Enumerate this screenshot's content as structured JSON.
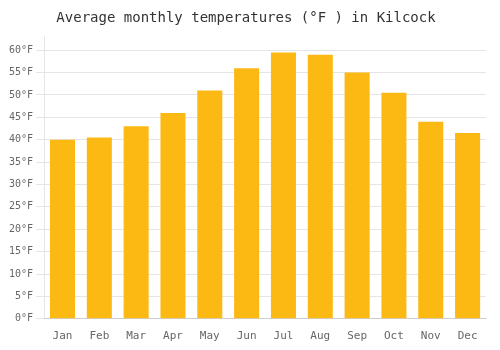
{
  "chart_data": {
    "type": "bar",
    "title": "Average monthly temperatures (°F ) in Kilcock",
    "categories": [
      "Jan",
      "Feb",
      "Mar",
      "Apr",
      "May",
      "Jun",
      "Jul",
      "Aug",
      "Sep",
      "Oct",
      "Nov",
      "Dec"
    ],
    "values": [
      40,
      40.5,
      43,
      46,
      51,
      56,
      59.5,
      59,
      55,
      50.5,
      44,
      41.5
    ],
    "color": "#FDB913",
    "ylim": [
      0,
      63
    ],
    "yticks": [
      {
        "value": 0,
        "label": "0°F"
      },
      {
        "value": 5,
        "label": "5°F"
      },
      {
        "value": 10,
        "label": "10°F"
      },
      {
        "value": 15,
        "label": "15°F"
      },
      {
        "value": 20,
        "label": "20°F"
      },
      {
        "value": 25,
        "label": "25°F"
      },
      {
        "value": 30,
        "label": "30°F"
      },
      {
        "value": 35,
        "label": "35°F"
      },
      {
        "value": 40,
        "label": "40°F"
      },
      {
        "value": 45,
        "label": "45°F"
      },
      {
        "value": 50,
        "label": "50°F"
      },
      {
        "value": 55,
        "label": "55°F"
      },
      {
        "value": 60,
        "label": "60°F"
      }
    ],
    "grid": true
  }
}
